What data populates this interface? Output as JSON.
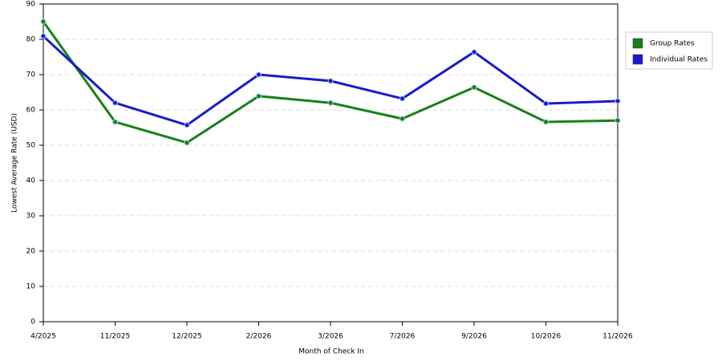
{
  "chart_data": {
    "type": "line",
    "x_label": "Month of Check In",
    "y_label": "Lowest Average Rate (USD)",
    "categories": [
      "4/2025",
      "11/2025",
      "12/2025",
      "2/2026",
      "3/2026",
      "7/2026",
      "9/2026",
      "10/2026",
      "11/2026"
    ],
    "series": [
      {
        "name": "Group Rates",
        "color": "#178017",
        "values": [
          85,
          56.6,
          50.7,
          63.9,
          62,
          57.5,
          66.4,
          56.6,
          57
        ]
      },
      {
        "name": "Individual Rates",
        "color": "#1a1acc",
        "values": [
          80.9,
          62,
          55.7,
          70,
          68.2,
          63.2,
          76.4,
          61.8,
          62.5
        ]
      }
    ],
    "ylim": [
      0,
      90
    ],
    "yticks": [
      0,
      10,
      20,
      30,
      40,
      50,
      60,
      70,
      80,
      90
    ],
    "grid": true
  }
}
